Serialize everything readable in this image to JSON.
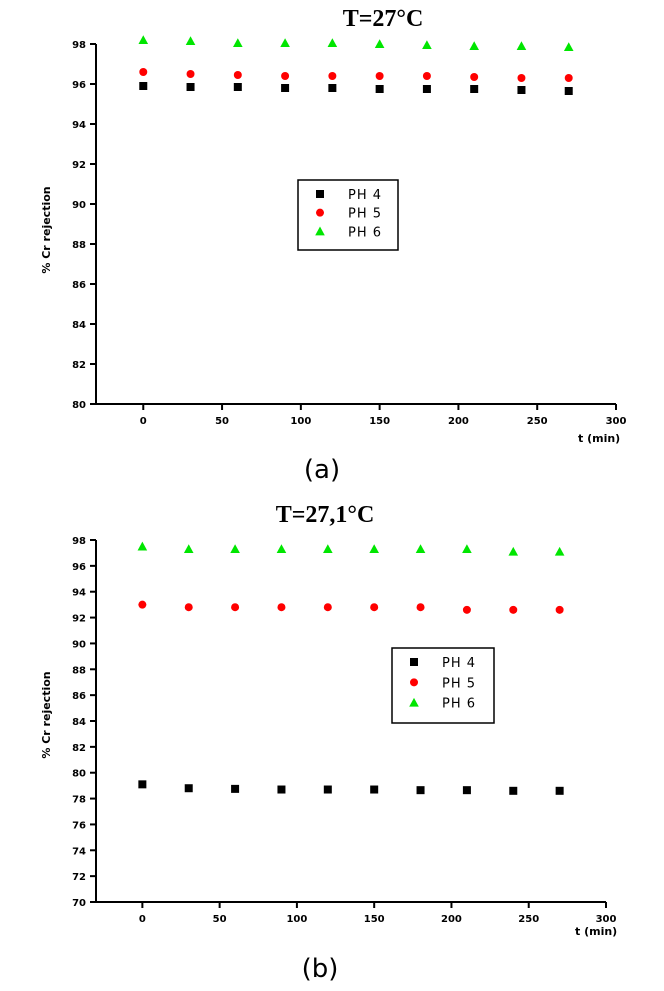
{
  "chart_data": [
    {
      "type": "scatter",
      "title": "T=27°C",
      "caption": "(a)",
      "xlabel": "t (min)",
      "ylabel": "% Cr rejection",
      "xlim": [
        -30,
        300
      ],
      "ylim": [
        80,
        98
      ],
      "xticks": [
        0,
        50,
        100,
        150,
        200,
        250,
        300
      ],
      "yticks": [
        80,
        82,
        84,
        86,
        88,
        90,
        92,
        94,
        96,
        98
      ],
      "legend_position": "center",
      "x": [
        0,
        30,
        60,
        90,
        120,
        150,
        180,
        210,
        240,
        270
      ],
      "series": [
        {
          "name": "PH 4",
          "marker": "square",
          "color": "#000000",
          "values": [
            95.9,
            95.85,
            95.85,
            95.8,
            95.8,
            95.75,
            95.75,
            95.75,
            95.7,
            95.65
          ]
        },
        {
          "name": "PH 5",
          "marker": "circle",
          "color": "#ff0000",
          "values": [
            96.6,
            96.5,
            96.45,
            96.4,
            96.4,
            96.4,
            96.4,
            96.35,
            96.3,
            96.3
          ]
        },
        {
          "name": "PH 6",
          "marker": "triangle",
          "color": "#00e600",
          "values": [
            98.2,
            98.15,
            98.05,
            98.05,
            98.05,
            98.0,
            97.95,
            97.9,
            97.9,
            97.85
          ]
        }
      ]
    },
    {
      "type": "scatter",
      "title": "T=27,1°C",
      "caption": "(b)",
      "xlabel": "t (min)",
      "ylabel": "% Cr rejection",
      "xlim": [
        -30,
        300
      ],
      "ylim": [
        70,
        98
      ],
      "xticks": [
        0,
        50,
        100,
        150,
        200,
        250,
        300
      ],
      "yticks": [
        70,
        72,
        74,
        76,
        78,
        80,
        82,
        84,
        86,
        88,
        90,
        92,
        94,
        96,
        98
      ],
      "legend_position": "center-right",
      "x": [
        0,
        30,
        60,
        90,
        120,
        150,
        180,
        210,
        240,
        270
      ],
      "series": [
        {
          "name": "PH 4",
          "marker": "square",
          "color": "#000000",
          "values": [
            79.1,
            78.8,
            78.75,
            78.7,
            78.7,
            78.7,
            78.65,
            78.65,
            78.6,
            78.6
          ]
        },
        {
          "name": "PH 5",
          "marker": "circle",
          "color": "#ff0000",
          "values": [
            93.0,
            92.8,
            92.8,
            92.8,
            92.8,
            92.8,
            92.8,
            92.6,
            92.6,
            92.6
          ]
        },
        {
          "name": "PH 6",
          "marker": "triangle",
          "color": "#00e600",
          "values": [
            97.5,
            97.3,
            97.3,
            97.3,
            97.3,
            97.3,
            97.3,
            97.3,
            97.1,
            97.1
          ]
        }
      ]
    }
  ]
}
